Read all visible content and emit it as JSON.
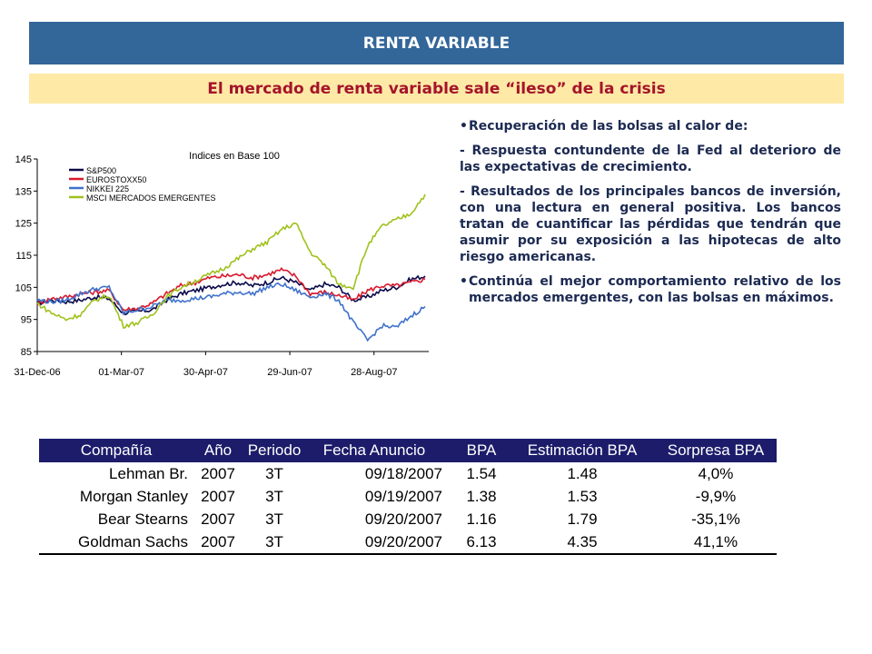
{
  "header": {
    "title": "RENTA VARIABLE",
    "subtitle": "El mercado de renta variable sale “ileso” de la crisis"
  },
  "bullets": {
    "b1": "Recuperación de las bolsas al calor de:",
    "p1": "- Respuesta contundente de la Fed al deterioro de las expectativas de crecimiento.",
    "p2": "- Resultados de los principales bancos de inversión, con una lectura en general positiva. Los bancos tratan de cuantificar las pérdidas que tendrán que asumir por su exposición a las hipotecas de alto riesgo americanas.",
    "b2": "Continúa el mejor comportamiento relativo de los mercados emergentes, con las bolsas en máximos."
  },
  "colors": {
    "header_bg": "#336699",
    "subtitle_bg": "#ffe9a6",
    "subtitle_text": "#a4142a",
    "table_header_bg": "#1c1c6b"
  },
  "chart_data": {
    "type": "line",
    "title": "Indices en Base 100",
    "xlabel": "",
    "ylabel": "",
    "ylim": [
      85,
      145
    ],
    "yticks": [
      "85",
      "95",
      "105",
      "115",
      "125",
      "135",
      "145"
    ],
    "xticks": [
      "31-Dec-06",
      "01-Mar-07",
      "30-Apr-07",
      "29-Jun-07",
      "28-Aug-07"
    ],
    "legend_position": "top-left",
    "grid": false,
    "series": [
      {
        "name": "S&P500",
        "color": "#0a0a4a",
        "values": [
          100,
          101,
          100.5,
          101,
          102,
          101.5,
          97,
          97.5,
          98,
          101,
          103,
          104,
          105,
          106,
          106.5,
          105.5,
          106.5,
          108,
          106.5,
          104,
          106,
          105,
          101,
          102,
          104,
          105,
          107.5,
          108.5
        ]
      },
      {
        "name": "EUROSTOXX50",
        "color": "#d9182d",
        "values": [
          100,
          101.5,
          102,
          103,
          103.5,
          104,
          98,
          98.5,
          100,
          103,
          105.5,
          106.5,
          108,
          108.5,
          109,
          108,
          109,
          110.5,
          108.5,
          103,
          103.5,
          102.5,
          101,
          104,
          105.5,
          105.5,
          106.5,
          107.5
        ]
      },
      {
        "name": "NIKKEI 225",
        "color": "#3f72cc",
        "values": [
          101,
          100.5,
          101,
          103,
          104.5,
          105,
          97,
          98,
          99,
          101,
          101,
          101.5,
          102,
          103,
          103.5,
          103,
          105,
          106,
          104,
          102,
          103,
          101,
          94,
          88.5,
          93,
          92.5,
          96,
          99
        ]
      },
      {
        "name": "MSCI MERCADOS EMERGENTES",
        "color": "#9fc21c",
        "values": [
          100,
          97,
          95,
          96.5,
          101,
          102.5,
          93,
          94,
          96.5,
          102,
          105,
          107,
          109,
          111,
          114,
          117,
          119,
          123,
          125,
          116,
          112,
          106,
          105,
          118,
          124,
          126,
          128,
          134
        ]
      }
    ]
  },
  "table": {
    "columns": [
      "Compañía",
      "Año",
      "Periodo",
      "Fecha Anuncio",
      "BPA",
      "Estimación BPA",
      "Sorpresa BPA"
    ],
    "rows": [
      [
        "Lehman Br.",
        "2007",
        "3T",
        "09/18/2007",
        "1.54",
        "1.48",
        "4,0%"
      ],
      [
        "Morgan Stanley",
        "2007",
        "3T",
        "09/19/2007",
        "1.38",
        "1.53",
        "-9,9%"
      ],
      [
        "Bear Stearns",
        "2007",
        "3T",
        "09/20/2007",
        "1.16",
        "1.79",
        "-35,1%"
      ],
      [
        "Goldman Sachs",
        "2007",
        "3T",
        "09/20/2007",
        "6.13",
        "4.35",
        "41,1%"
      ]
    ]
  }
}
